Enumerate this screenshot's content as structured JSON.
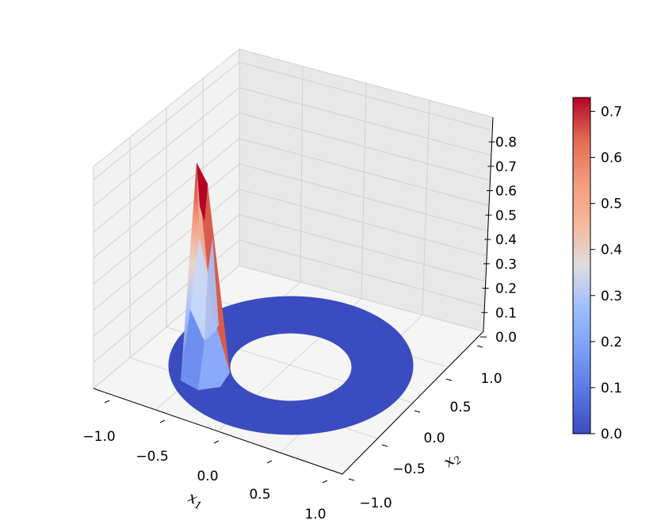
{
  "chart_data": {
    "type": "surface",
    "title": "",
    "xlabel": "x",
    "xlabel_sub": "1",
    "ylabel": "x",
    "ylabel_sub": "2",
    "zlabel": "",
    "x_ticks": [
      "−1.0",
      "−0.5",
      "0.0",
      "0.5",
      "1.0"
    ],
    "y_ticks": [
      "−1.0",
      "−0.5",
      "0.0",
      "0.5",
      "1.0"
    ],
    "z_ticks": [
      "0.0",
      "0.1",
      "0.2",
      "0.3",
      "0.4",
      "0.5",
      "0.6",
      "0.7",
      "0.8"
    ],
    "xlim": [
      -1.0,
      1.0
    ],
    "ylim": [
      -1.0,
      1.0
    ],
    "zlim": [
      0.0,
      0.85
    ],
    "domain": {
      "shape": "annulus",
      "inner_radius": 0.5,
      "outer_radius": 1.0
    },
    "peak": {
      "x": -0.75,
      "y": -0.75,
      "z": 0.73
    },
    "colormap": "coolwarm",
    "colorbar": {
      "range": [
        0.0,
        0.73
      ],
      "ticks": [
        "0.0",
        "0.1",
        "0.2",
        "0.3",
        "0.4",
        "0.5",
        "0.6",
        "0.7"
      ]
    },
    "grid": true
  }
}
